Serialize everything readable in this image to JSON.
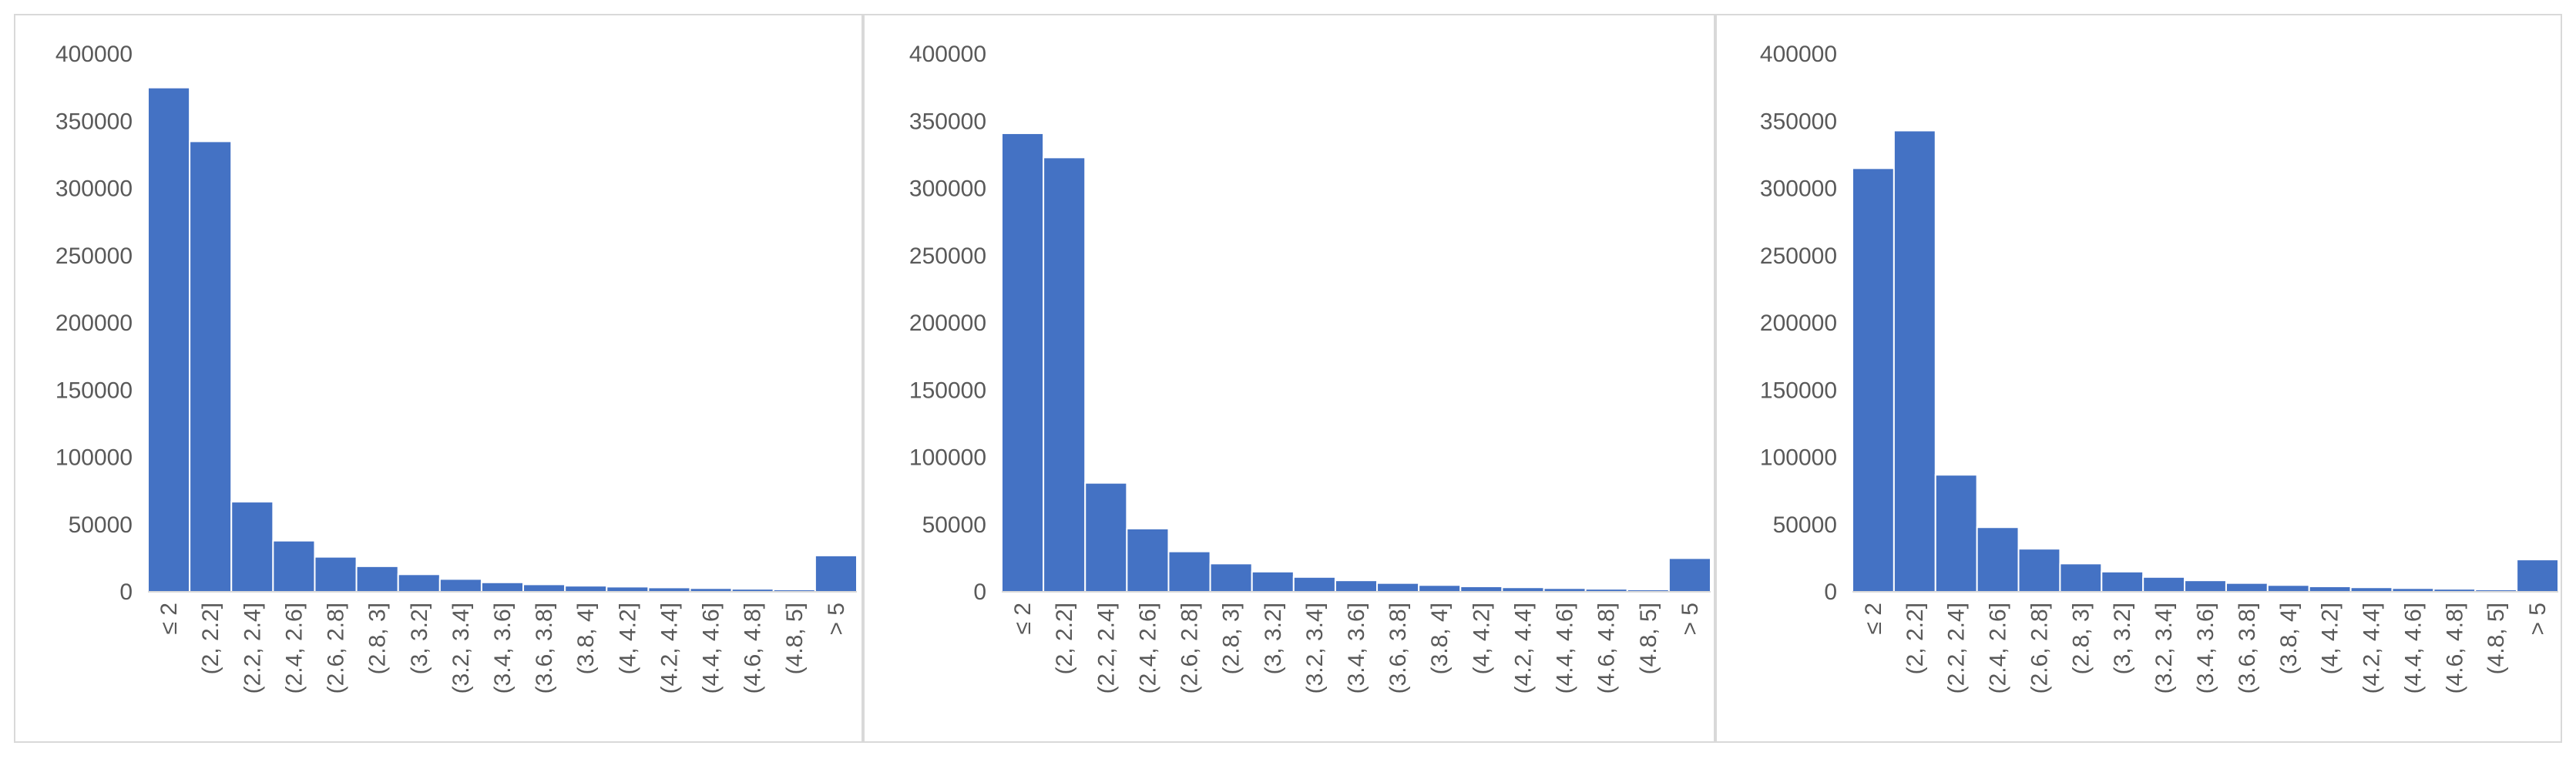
{
  "style": {
    "bar_color": "#4472c4",
    "bar_edge_color": "#ffffff",
    "axis_color": "#d9d9d9",
    "text_color": "#595959"
  },
  "chart_data": [
    {
      "type": "bar",
      "title": "",
      "xlabel": "",
      "ylabel": "",
      "ylim": [
        0,
        400000
      ],
      "yticks": [
        "0",
        "50000",
        "100000",
        "150000",
        "200000",
        "250000",
        "300000",
        "350000",
        "400000"
      ],
      "grid": false,
      "categories": [
        "≤ 2",
        "(2, 2.2]",
        "(2.2, 2.4]",
        "(2.4, 2.6]",
        "(2.6, 2.8]",
        "(2.8, 3]",
        "(3, 3.2]",
        "(3.2, 3.4]",
        "(3.4, 3.6]",
        "(3.6, 3.8]",
        "(3.8, 4]",
        "(4, 4.2]",
        "(4.2, 4.4]",
        "(4.4, 4.6]",
        "(4.6, 4.8]",
        "(4.8, 5]",
        "> 5"
      ],
      "values": [
        375000,
        335000,
        67000,
        38000,
        26000,
        19000,
        13000,
        9500,
        7000,
        5500,
        4500,
        3800,
        3200,
        2700,
        2200,
        1700,
        27000
      ]
    },
    {
      "type": "bar",
      "title": "",
      "xlabel": "",
      "ylabel": "",
      "ylim": [
        0,
        400000
      ],
      "yticks": [
        "0",
        "50000",
        "100000",
        "150000",
        "200000",
        "250000",
        "300000",
        "350000",
        "400000"
      ],
      "grid": false,
      "categories": [
        "≤ 2",
        "(2, 2.2]",
        "(2.2, 2.4]",
        "(2.4, 2.6]",
        "(2.6, 2.8]",
        "(2.8, 3]",
        "(3, 3.2]",
        "(3.2, 3.4]",
        "(3.4, 3.6]",
        "(3.6, 3.8]",
        "(3.8, 4]",
        "(4, 4.2]",
        "(4.2, 4.4]",
        "(4.4, 4.6]",
        "(4.6, 4.8]",
        "(4.8, 5]",
        "> 5"
      ],
      "values": [
        341000,
        323000,
        81000,
        47000,
        30000,
        21000,
        15000,
        11000,
        8500,
        6500,
        5000,
        4000,
        3300,
        2700,
        2200,
        1700,
        25000
      ]
    },
    {
      "type": "bar",
      "title": "",
      "xlabel": "",
      "ylabel": "",
      "ylim": [
        0,
        400000
      ],
      "yticks": [
        "0",
        "50000",
        "100000",
        "150000",
        "200000",
        "250000",
        "300000",
        "350000",
        "400000"
      ],
      "grid": false,
      "categories": [
        "≤ 2",
        "(2, 2.2]",
        "(2.2, 2.4]",
        "(2.4, 2.6]",
        "(2.6, 2.8]",
        "(2.8, 3]",
        "(3, 3.2]",
        "(3.2, 3.4]",
        "(3.4, 3.6]",
        "(3.6, 3.8]",
        "(3.8, 4]",
        "(4, 4.2]",
        "(4.2, 4.4]",
        "(4.4, 4.6]",
        "(4.6, 4.8]",
        "(4.8, 5]",
        "> 5"
      ],
      "values": [
        315000,
        343000,
        87000,
        48000,
        32000,
        21000,
        15000,
        11000,
        8500,
        6500,
        5000,
        4000,
        3300,
        2700,
        2200,
        1700,
        24000
      ]
    }
  ]
}
